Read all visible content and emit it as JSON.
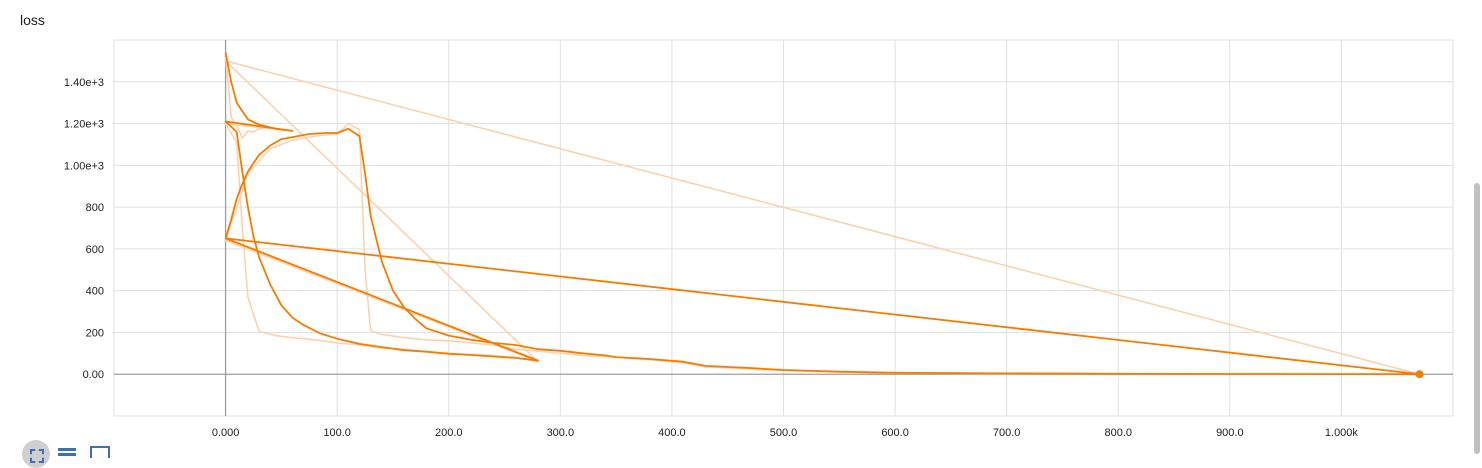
{
  "card": {
    "title": "loss"
  },
  "toolbar": {
    "icons": [
      "fit-domain-icon",
      "log-scale-icon",
      "toggle-range-icon"
    ]
  },
  "colors": {
    "series": "#f57c00",
    "raw": "#fbd2b0",
    "grid": "#e0e0e0",
    "axis": "#9e9e9e"
  },
  "chart_data": {
    "type": "line",
    "title": "loss",
    "xlabel": "",
    "ylabel": "",
    "xlim": [
      -100,
      1100
    ],
    "ylim": [
      -200,
      1600
    ],
    "grid": true,
    "x_ticks": [
      {
        "value": 0,
        "label": "0.000"
      },
      {
        "value": 100,
        "label": "100.0"
      },
      {
        "value": 200,
        "label": "200.0"
      },
      {
        "value": 300,
        "label": "300.0"
      },
      {
        "value": 400,
        "label": "400.0"
      },
      {
        "value": 500,
        "label": "500.0"
      },
      {
        "value": 600,
        "label": "600.0"
      },
      {
        "value": 700,
        "label": "700.0"
      },
      {
        "value": 800,
        "label": "800.0"
      },
      {
        "value": 900,
        "label": "900.0"
      },
      {
        "value": 1000,
        "label": "1.000k"
      }
    ],
    "y_ticks": [
      {
        "value": 0,
        "label": "0.00"
      },
      {
        "value": 200,
        "label": "200"
      },
      {
        "value": 400,
        "label": "400"
      },
      {
        "value": 600,
        "label": "600"
      },
      {
        "value": 800,
        "label": "800"
      },
      {
        "value": 1000,
        "label": "1.00e+3"
      },
      {
        "value": 1200,
        "label": "1.20e+3"
      },
      {
        "value": 1400,
        "label": "1.40e+3"
      }
    ],
    "series": [
      {
        "smoothed": [
          [
            0,
            1540
          ],
          [
            5,
            1400
          ],
          [
            10,
            1300
          ],
          [
            20,
            1220
          ],
          [
            30,
            1195
          ],
          [
            45,
            1175
          ],
          [
            60,
            1165
          ],
          [
            0,
            1210
          ],
          [
            10,
            1160
          ],
          [
            15,
            970
          ],
          [
            20,
            800
          ],
          [
            25,
            660
          ],
          [
            30,
            560
          ],
          [
            40,
            430
          ],
          [
            50,
            330
          ],
          [
            60,
            270
          ],
          [
            70,
            235
          ],
          [
            85,
            195
          ],
          [
            100,
            170
          ],
          [
            120,
            145
          ],
          [
            140,
            130
          ],
          [
            160,
            115
          ],
          [
            180,
            108
          ],
          [
            200,
            98
          ],
          [
            220,
            92
          ],
          [
            240,
            85
          ],
          [
            260,
            78
          ],
          [
            280,
            65
          ],
          [
            0,
            650
          ],
          [
            5,
            740
          ],
          [
            10,
            840
          ],
          [
            15,
            910
          ],
          [
            20,
            970
          ],
          [
            30,
            1050
          ],
          [
            40,
            1095
          ],
          [
            50,
            1125
          ],
          [
            60,
            1135
          ],
          [
            75,
            1150
          ],
          [
            90,
            1155
          ],
          [
            100,
            1155
          ],
          [
            110,
            1175
          ],
          [
            120,
            1140
          ],
          [
            125,
            960
          ],
          [
            130,
            760
          ],
          [
            140,
            540
          ],
          [
            150,
            400
          ],
          [
            160,
            320
          ],
          [
            170,
            265
          ],
          [
            180,
            220
          ],
          [
            200,
            185
          ],
          [
            220,
            165
          ],
          [
            240,
            150
          ],
          [
            260,
            140
          ],
          [
            270,
            130
          ],
          [
            280,
            120
          ],
          [
            300,
            112
          ],
          [
            320,
            100
          ],
          [
            340,
            90
          ],
          [
            350,
            82
          ],
          [
            380,
            73
          ],
          [
            410,
            60
          ],
          [
            430,
            40
          ],
          [
            470,
            30
          ],
          [
            500,
            20
          ],
          [
            550,
            12
          ],
          [
            600,
            7
          ],
          [
            700,
            4
          ],
          [
            800,
            2
          ],
          [
            900,
            1
          ],
          [
            1000,
            0.5
          ],
          [
            1070,
            0.2
          ],
          [
            0,
            650
          ],
          [
            280,
            65
          ]
        ],
        "raw": [
          [
            0,
            1520
          ],
          [
            5,
            1230
          ],
          [
            10,
            1190
          ],
          [
            15,
            1130
          ],
          [
            20,
            1165
          ],
          [
            25,
            1160
          ],
          [
            30,
            1175
          ],
          [
            40,
            1180
          ],
          [
            50,
            1170
          ],
          [
            60,
            1165
          ],
          [
            0,
            1200
          ],
          [
            10,
            1110
          ],
          [
            15,
            700
          ],
          [
            20,
            370
          ],
          [
            30,
            205
          ],
          [
            45,
            185
          ],
          [
            60,
            175
          ],
          [
            80,
            165
          ],
          [
            100,
            150
          ],
          [
            120,
            140
          ],
          [
            140,
            125
          ],
          [
            160,
            120
          ],
          [
            180,
            108
          ],
          [
            200,
            100
          ],
          [
            220,
            95
          ],
          [
            240,
            90
          ],
          [
            260,
            80
          ],
          [
            280,
            60
          ],
          [
            0,
            640
          ],
          [
            20,
            960
          ],
          [
            40,
            1080
          ],
          [
            60,
            1120
          ],
          [
            80,
            1140
          ],
          [
            100,
            1150
          ],
          [
            110,
            1200
          ],
          [
            120,
            1170
          ],
          [
            125,
            500
          ],
          [
            130,
            210
          ],
          [
            140,
            190
          ],
          [
            160,
            175
          ],
          [
            180,
            165
          ],
          [
            200,
            160
          ],
          [
            220,
            150
          ],
          [
            240,
            140
          ],
          [
            260,
            120
          ],
          [
            280,
            110
          ],
          [
            300,
            100
          ],
          [
            320,
            90
          ],
          [
            340,
            85
          ],
          [
            380,
            70
          ],
          [
            410,
            55
          ],
          [
            430,
            35
          ],
          [
            470,
            25
          ],
          [
            500,
            18
          ],
          [
            550,
            10
          ],
          [
            600,
            6
          ],
          [
            700,
            3
          ],
          [
            800,
            2
          ],
          [
            900,
            1
          ],
          [
            1000,
            0.5
          ],
          [
            1070,
            0.2
          ],
          [
            0,
            1500
          ],
          [
            280,
            60
          ]
        ],
        "last_point": [
          1070,
          0
        ]
      }
    ]
  }
}
